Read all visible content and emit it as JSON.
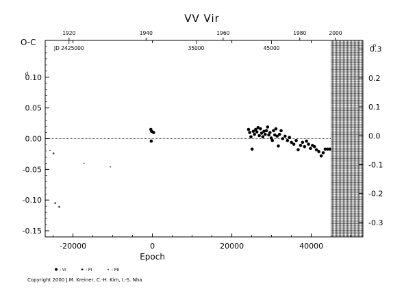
{
  "chart_data": {
    "type": "scatter",
    "title": "VV  Vir",
    "xlabel": "Epoch",
    "ylabel": "O-C",
    "xlim": [
      -27000,
      53000
    ],
    "ylim": [
      -0.16,
      0.16
    ],
    "right_ylim": [
      -0.35,
      0.33
    ],
    "x_ticks": [
      -20000,
      0,
      20000,
      40000
    ],
    "x_tick_labels": [
      "-20000",
      "0",
      "20000",
      "40000"
    ],
    "y_ticks": [
      -0.15,
      -0.1,
      -0.05,
      0.0,
      0.05,
      0.1
    ],
    "y_tick_labels": [
      "-0.15",
      "-0.10",
      "-0.05",
      "0.00",
      "0.05",
      "0.10"
    ],
    "y_top_label": "0.10",
    "y_unit": "d",
    "right_ticks": [
      -0.3,
      -0.2,
      -0.1,
      0.0,
      0.1,
      0.2,
      0.3
    ],
    "right_tick_labels": [
      "-0.3",
      "-0.2",
      "-0.1",
      "0.0",
      "0.1",
      "0.2",
      "0.3"
    ],
    "right_top_label": "0.3",
    "right_unit": "p",
    "top_year_ticks": [
      {
        "epoch": -21000,
        "label": "1920"
      },
      {
        "epoch": -1600,
        "label": "1940"
      },
      {
        "epoch": 17800,
        "label": "1960"
      },
      {
        "epoch": 37100,
        "label": "1980"
      },
      {
        "epoch": 46100,
        "label": "2000"
      }
    ],
    "jd_ticks": [
      {
        "epoch": -21000,
        "label": "JD 2425000"
      },
      {
        "epoch": 11000,
        "label": "35000"
      },
      {
        "epoch": 30000,
        "label": "45000"
      }
    ],
    "future_region_start": 45000,
    "zero_line": 0.0,
    "legend_position": "bottom-left",
    "series": [
      {
        "name": ": VI",
        "marker": "filled-circle",
        "points": [
          [
            -400,
            0.015
          ],
          [
            -200,
            0.012
          ],
          [
            300,
            0.01
          ],
          [
            -300,
            -0.004
          ],
          [
            24200,
            0.015
          ],
          [
            24500,
            0.01
          ],
          [
            24800,
            0.003
          ],
          [
            25100,
            -0.017
          ],
          [
            25400,
            0.012
          ],
          [
            25700,
            0.007
          ],
          [
            26000,
            0.015
          ],
          [
            26300,
            0.011
          ],
          [
            26600,
            0.018
          ],
          [
            26900,
            0.005
          ],
          [
            27200,
            0.016
          ],
          [
            27500,
            0.009
          ],
          [
            27800,
            0.003
          ],
          [
            28100,
            0.012
          ],
          [
            28400,
            0.007
          ],
          [
            28700,
            0.013
          ],
          [
            29000,
            0.019
          ],
          [
            29300,
            0.006
          ],
          [
            29600,
            0.01
          ],
          [
            29900,
            0.001
          ],
          [
            30200,
            -0.003
          ],
          [
            30500,
            0.013
          ],
          [
            30800,
            0.006
          ],
          [
            31100,
            0.016
          ],
          [
            31400,
            0.004
          ],
          [
            31700,
            -0.012
          ],
          [
            32000,
            0.007
          ],
          [
            32400,
            0.013
          ],
          [
            32800,
            0.0
          ],
          [
            33400,
            0.004
          ],
          [
            34000,
            -0.003
          ],
          [
            34500,
            0.002
          ],
          [
            35000,
            -0.006
          ],
          [
            35600,
            -0.009
          ],
          [
            36200,
            -0.003
          ],
          [
            36700,
            -0.018
          ],
          [
            37300,
            -0.011
          ],
          [
            37800,
            -0.006
          ],
          [
            38300,
            -0.013
          ],
          [
            38800,
            -0.004
          ],
          [
            39300,
            -0.009
          ],
          [
            39800,
            -0.016
          ],
          [
            40300,
            -0.011
          ],
          [
            40800,
            -0.013
          ],
          [
            41300,
            -0.018
          ],
          [
            41900,
            -0.021
          ],
          [
            42500,
            -0.028
          ],
          [
            43000,
            -0.023
          ],
          [
            43500,
            -0.017
          ],
          [
            44100,
            -0.017
          ],
          [
            44700,
            -0.017
          ]
        ]
      },
      {
        "name": ": PI",
        "marker": "plus",
        "points": [
          [
            -24900,
            -0.024
          ],
          [
            -24500,
            -0.105
          ],
          [
            -23500,
            -0.111
          ]
        ]
      },
      {
        "name": ": PII",
        "marker": "small-dot",
        "points": [
          [
            -25800,
            -0.019
          ],
          [
            -17200,
            -0.04
          ],
          [
            -10600,
            -0.046
          ]
        ]
      }
    ]
  },
  "copyright": "Copyright 2000 J.M. Kreiner, C.-H. Kim, I.-S. Nha"
}
